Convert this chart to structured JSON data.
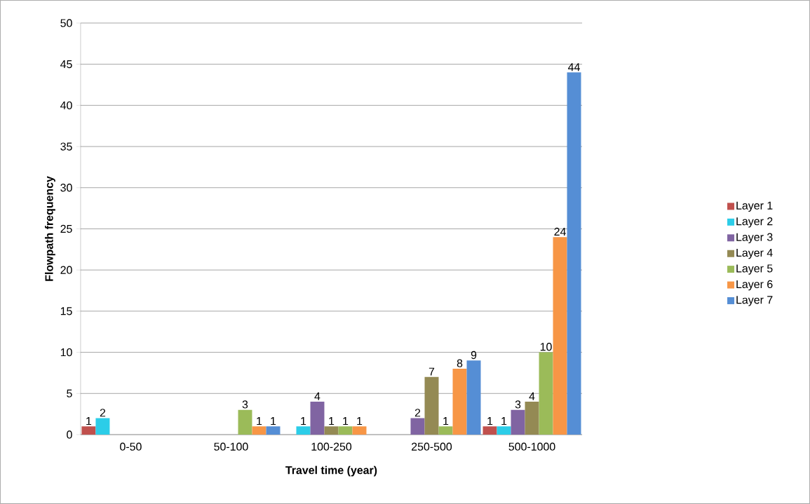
{
  "chart_data": {
    "type": "bar",
    "xlabel": "Travel time (year)",
    "ylabel": "Flowpath frequency",
    "categories": [
      "0-50",
      "50-100",
      "100-250",
      "250-500",
      "500-1000"
    ],
    "series": [
      {
        "name": "Layer 1",
        "color": "#c0504d",
        "values": [
          1,
          null,
          null,
          null,
          1
        ]
      },
      {
        "name": "Layer 2",
        "color": "#2ccde8",
        "values": [
          2,
          null,
          1,
          null,
          1
        ]
      },
      {
        "name": "Layer 3",
        "color": "#8064a2",
        "values": [
          null,
          null,
          4,
          2,
          3
        ]
      },
      {
        "name": "Layer 4",
        "color": "#948a54",
        "values": [
          null,
          null,
          1,
          7,
          4
        ]
      },
      {
        "name": "Layer 5",
        "color": "#9bbb59",
        "values": [
          null,
          3,
          1,
          1,
          10
        ]
      },
      {
        "name": "Layer 6",
        "color": "#f79646",
        "values": [
          null,
          1,
          1,
          8,
          24
        ]
      },
      {
        "name": "Layer 7",
        "color": "#558ed5",
        "values": [
          null,
          1,
          null,
          9,
          44
        ]
      }
    ],
    "ylim": [
      0,
      50
    ],
    "yticks": [
      0,
      5,
      10,
      15,
      20,
      25,
      30,
      35,
      40,
      45,
      50
    ],
    "grid": "y",
    "legend": "right",
    "data_labels": true
  }
}
